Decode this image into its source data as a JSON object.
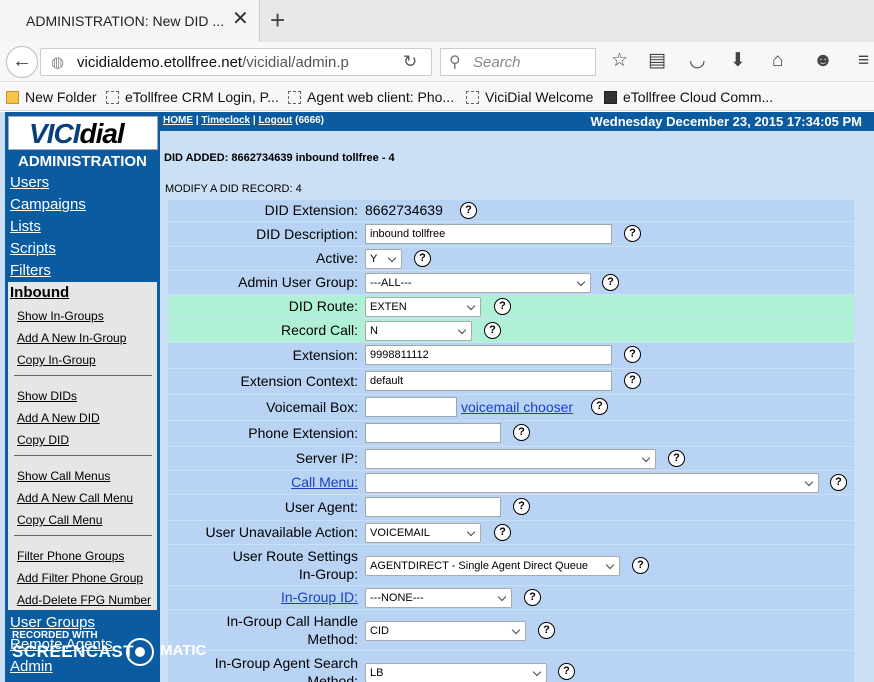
{
  "browser": {
    "tab_title": "ADMINISTRATION: New DID ...",
    "url_host": "vicidialdemo.etollfree.net",
    "url_path": "/vicidial/admin.p",
    "search_placeholder": "Search",
    "bookmarks": [
      "New Folder",
      "eTollfree CRM Login, P...",
      "Agent web client: Pho...",
      "ViciDial Welcome",
      "eTollfree Cloud Comm..."
    ]
  },
  "sidebar": {
    "logo_vici": "VICI",
    "logo_dial": "dial",
    "admin_title": "ADMINISTRATION",
    "main_links": [
      "Users",
      "Campaigns",
      "Lists",
      "Scripts",
      "Filters"
    ],
    "inbound_title": "Inbound",
    "inbound_links": [
      "Show In-Groups",
      "Add A New In-Group",
      "Copy In-Group",
      "Show DIDs",
      "Add A New DID",
      "Copy DID",
      "Show Call Menus",
      "Add A New Call Menu",
      "Copy Call Menu",
      "Filter Phone Groups",
      "Add Filter Phone Group",
      "Add-Delete FPG Number"
    ],
    "bottom_links": [
      "User Groups",
      "Remote Agents",
      "Admin"
    ]
  },
  "header": {
    "home": "HOME",
    "timeclock": "Timeclock",
    "logout": "Logout",
    "user": "(6666)",
    "datetime": "Wednesday December 23, 2015 17:34:05 PM"
  },
  "status_message": "DID ADDED: 8662734639 inbound tollfree - 4",
  "form_title": "MODIFY A DID RECORD: 4",
  "form": {
    "did_extension_label": "DID Extension:",
    "did_extension": "8662734639",
    "did_description_label": "DID Description:",
    "did_description": "inbound tollfree",
    "active_label": "Active:",
    "active": "Y",
    "admin_user_group_label": "Admin User Group:",
    "admin_user_group": "---ALL---",
    "did_route_label": "DID Route:",
    "did_route": "EXTEN",
    "record_call_label": "Record Call:",
    "record_call": "N",
    "extension_label": "Extension:",
    "extension": "9998811112",
    "extension_context_label": "Extension Context:",
    "extension_context": "default",
    "voicemail_box_label": "Voicemail Box:",
    "voicemail_box": "",
    "voicemail_chooser": "voicemail chooser",
    "phone_extension_label": "Phone Extension:",
    "phone_extension": "",
    "server_ip_label": "Server IP:",
    "server_ip": "",
    "call_menu_label": "Call Menu:",
    "call_menu": "",
    "user_agent_label": "User Agent:",
    "user_agent": "",
    "user_unavailable_action_label": "User Unavailable Action:",
    "user_unavailable_action": "VOICEMAIL",
    "user_route_settings_label_1": "User Route Settings",
    "user_route_settings_label_2": "In-Group:",
    "user_route_settings": "AGENTDIRECT - Single Agent Direct Queue",
    "in_group_id_label": "In-Group ID:",
    "in_group_id": "---NONE---",
    "in_group_call_handle_label_1": "In-Group Call Handle",
    "in_group_call_handle_label_2": "Method:",
    "in_group_call_handle": "CID",
    "in_group_agent_search_label_1": "In-Group Agent Search",
    "in_group_agent_search_label_2": "Method:",
    "in_group_agent_search": "LB",
    "help_glyph": "?"
  },
  "watermark": {
    "line1": "RECORDED WITH",
    "line2": "SCREENCAST",
    "line3": "MATIC"
  }
}
